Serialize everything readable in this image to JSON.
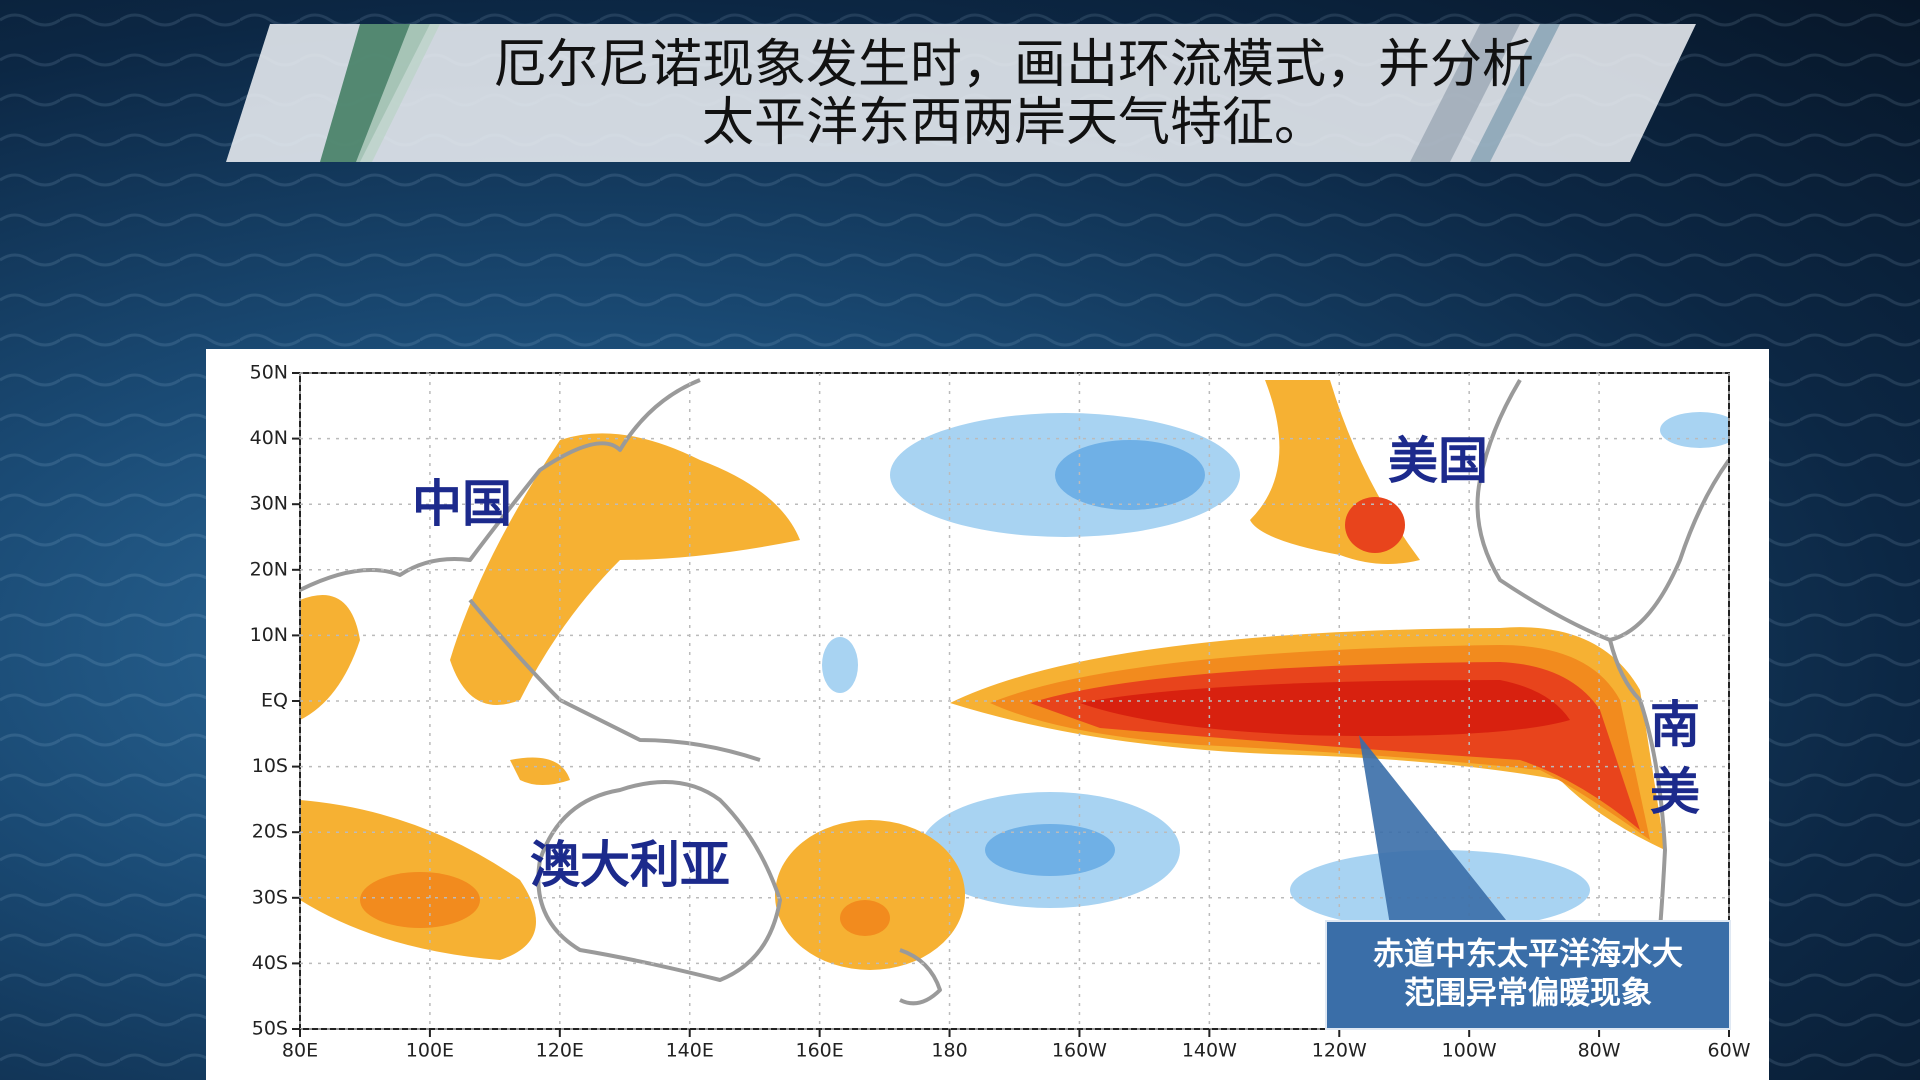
{
  "header": {
    "title_lines": [
      "厄尔尼诺现象发生时，画出环流模式，并分析",
      "太平洋东西两岸天气特征。"
    ]
  },
  "map": {
    "lat_labels": [
      "50N",
      "40N",
      "30N",
      "20N",
      "10N",
      "EQ",
      "10S",
      "20S",
      "30S",
      "40S",
      "50S"
    ],
    "lon_labels": [
      "80E",
      "100E",
      "120E",
      "140E",
      "160E",
      "180",
      "160W",
      "140W",
      "120W",
      "100W",
      "80W",
      "60W"
    ],
    "regions": {
      "china": "中国",
      "usa": "美国",
      "south_america": [
        "南",
        "美"
      ],
      "australia": "澳大利亚"
    },
    "callout": [
      "赤道中东太平洋海水大",
      "范围异常偏暖现象"
    ]
  }
}
